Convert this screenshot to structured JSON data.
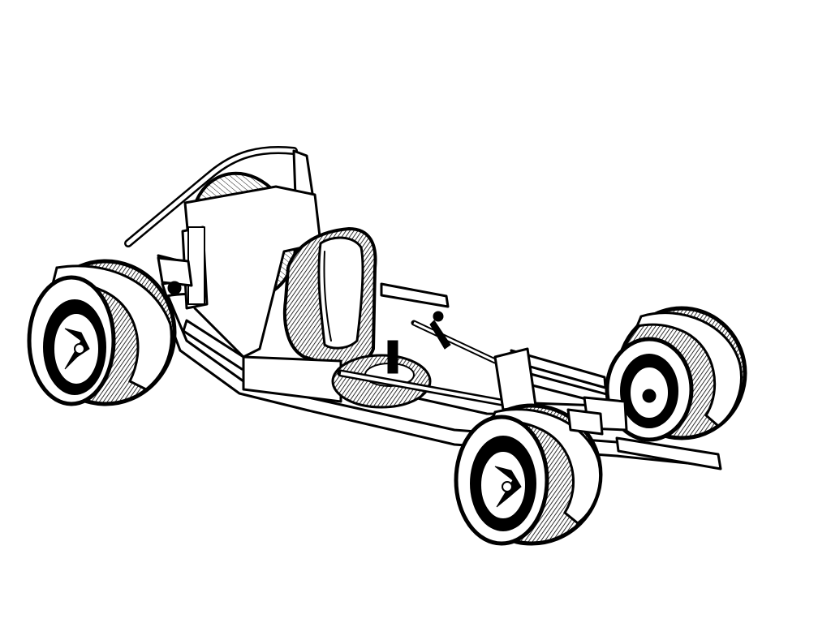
{
  "figure": {
    "subject": "go-kart-line-drawing",
    "background_color": "#ffffff",
    "ink_color": "#000000",
    "wheels": 4,
    "has_seat": true,
    "has_roll_bar": true,
    "has_steering_column": true
  }
}
